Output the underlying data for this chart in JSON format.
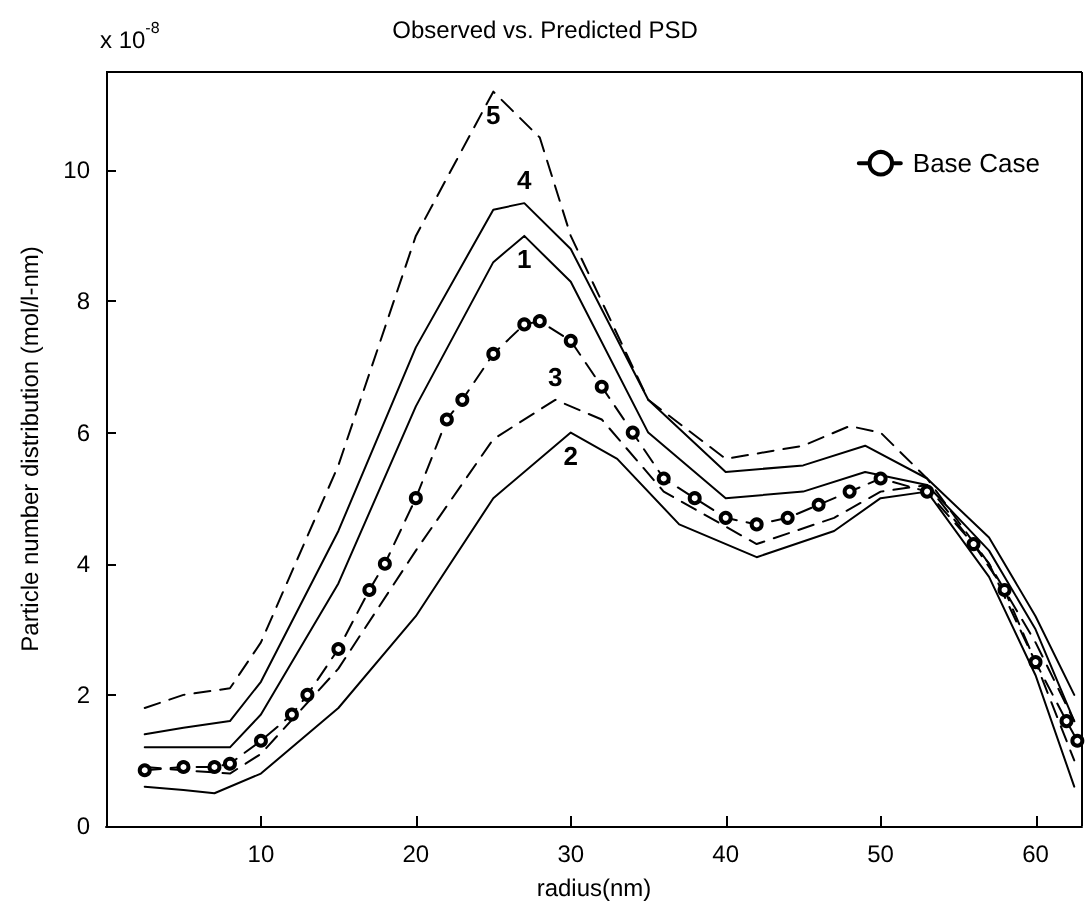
{
  "chart_data": {
    "type": "line",
    "title": "Observed vs. Predicted PSD",
    "xlabel": "radius(nm)",
    "ylabel": "Particle number distribution (mol/l-nm)",
    "xlim": [
      0,
      63
    ],
    "xticks": [
      10,
      20,
      30,
      40,
      50,
      60
    ],
    "ylim": [
      0,
      11.5
    ],
    "yticks": [
      0,
      2,
      4,
      6,
      8,
      10
    ],
    "grid": false,
    "legend": "top right",
    "annotations": [
      "x 10$^{-8}$"
    ],
    "series": [
      {
        "name": "5",
        "color": "#000000",
        "line_style": "dashed",
        "marker": "none",
        "x": [
          2.5,
          5,
          8,
          10,
          15,
          20,
          25,
          28,
          30,
          35,
          40,
          45,
          48,
          50,
          53,
          57,
          60,
          62.5
        ],
        "values": [
          1.8,
          2.0,
          2.1,
          2.8,
          5.5,
          9,
          11.2,
          10.5,
          9,
          6.5,
          5.6,
          5.8,
          6.1,
          6.0,
          5.3,
          4,
          2.8,
          1.6
        ]
      },
      {
        "name": "4",
        "color": "#000000",
        "line_style": "solid",
        "marker": "none",
        "x": [
          2.5,
          5,
          8,
          10,
          15,
          20,
          25,
          27,
          30,
          35,
          40,
          45,
          49,
          53,
          57,
          60,
          62.5
        ],
        "values": [
          1.4,
          1.5,
          1.6,
          2.2,
          4.5,
          7.3,
          9.4,
          9.5,
          8.8,
          6.5,
          5.4,
          5.5,
          5.8,
          5.3,
          4.4,
          3.2,
          2.0
        ]
      },
      {
        "name": "1",
        "color": "#000000",
        "line_style": "solid",
        "marker": "none",
        "x": [
          2.5,
          5,
          8,
          10,
          15,
          20,
          25,
          27,
          30,
          35,
          40,
          45,
          49,
          53,
          57,
          60,
          62.5
        ],
        "values": [
          1.2,
          1.2,
          1.2,
          1.7,
          3.7,
          6.4,
          8.6,
          9.0,
          8.3,
          6.0,
          5.0,
          5.1,
          5.4,
          5.2,
          4.2,
          3.0,
          1.6
        ]
      },
      {
        "name": "Base Case",
        "color": "#000000",
        "line_style": "dashed",
        "marker": "circle",
        "x": [
          2.5,
          5,
          7,
          8,
          10,
          12,
          13,
          15,
          17,
          18,
          20,
          22,
          23,
          25,
          27,
          28,
          30,
          32,
          34,
          36,
          38,
          40,
          42,
          44,
          46,
          48,
          50,
          53,
          56,
          58,
          60,
          62,
          62.7
        ],
        "values": [
          0.85,
          0.9,
          0.9,
          0.95,
          1.3,
          1.7,
          2.0,
          2.7,
          3.6,
          4.0,
          5.0,
          6.2,
          6.5,
          7.2,
          7.65,
          7.7,
          7.4,
          6.7,
          6.0,
          5.3,
          5.0,
          4.7,
          4.6,
          4.7,
          4.9,
          5.1,
          5.3,
          5.1,
          4.3,
          3.6,
          2.5,
          1.6,
          1.3
        ]
      },
      {
        "name": "3",
        "color": "#000000",
        "line_style": "dashed",
        "marker": "none",
        "x": [
          2.5,
          5,
          8,
          10,
          15,
          20,
          25,
          29,
          32,
          36,
          42,
          47,
          50,
          53,
          57,
          60,
          62.5
        ],
        "values": [
          0.9,
          0.85,
          0.8,
          1.1,
          2.4,
          4.2,
          5.9,
          6.5,
          6.2,
          5.1,
          4.3,
          4.7,
          5.1,
          5.2,
          4.0,
          2.5,
          1.0
        ]
      },
      {
        "name": "2",
        "color": "#000000",
        "line_style": "solid",
        "marker": "none",
        "x": [
          2.5,
          5,
          7,
          10,
          15,
          20,
          25,
          30,
          33,
          37,
          42,
          47,
          50,
          53,
          57,
          60,
          62.5
        ],
        "values": [
          0.6,
          0.55,
          0.5,
          0.8,
          1.8,
          3.2,
          5.0,
          6.0,
          5.6,
          4.6,
          4.1,
          4.5,
          5.0,
          5.1,
          3.8,
          2.3,
          0.6
        ]
      }
    ]
  }
}
